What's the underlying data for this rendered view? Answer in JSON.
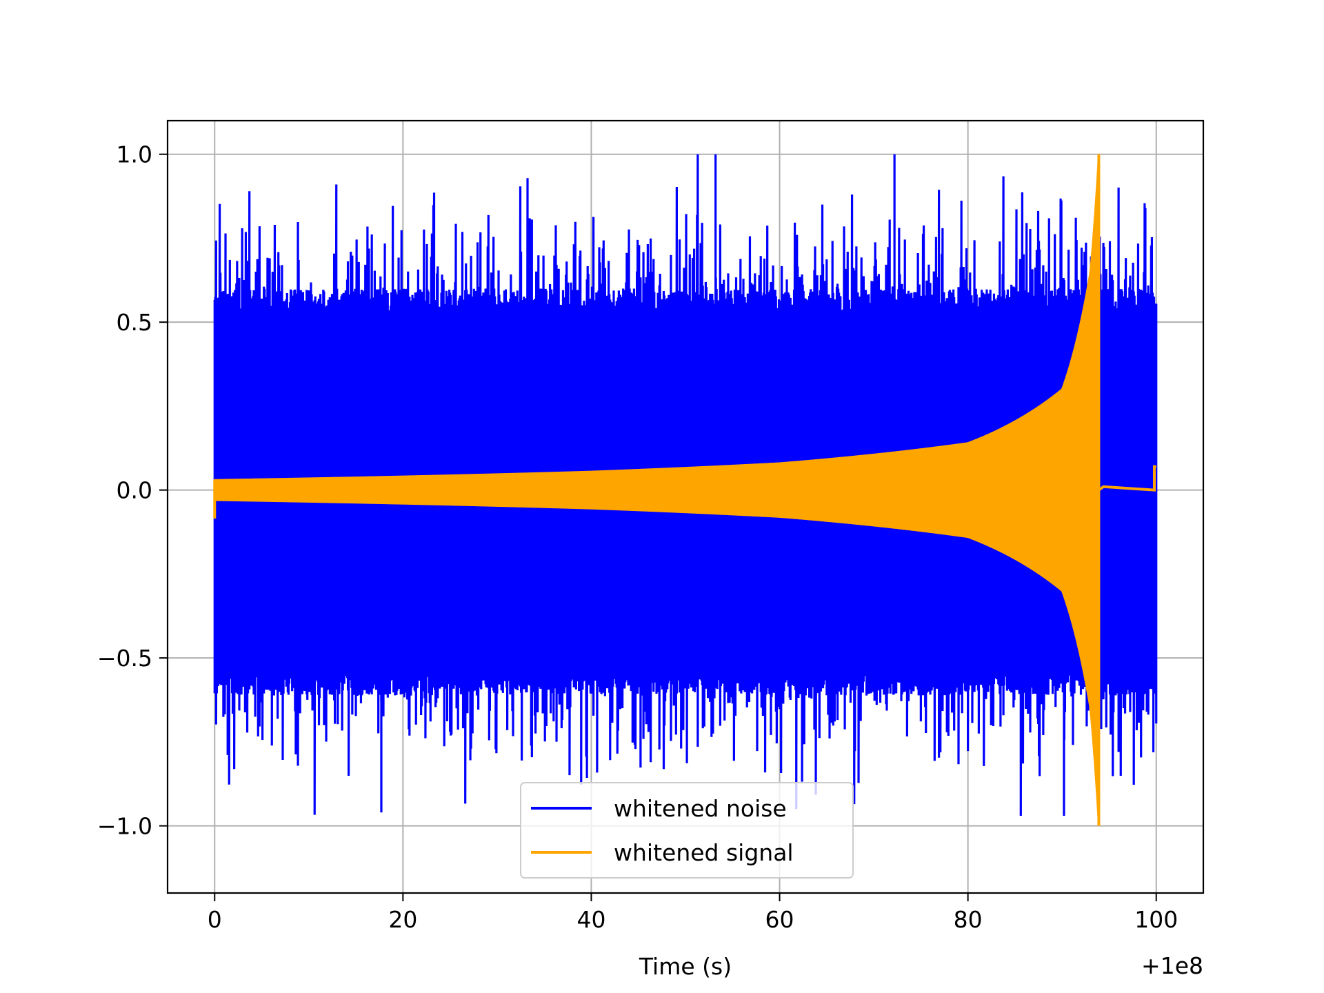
{
  "chart_data": {
    "type": "line",
    "title": "",
    "xlabel": "Time (s)",
    "ylabel": "",
    "x_offset_label": "+1e8",
    "xlim": [
      -5,
      105
    ],
    "ylim": [
      -1.2,
      1.1
    ],
    "xticks": [
      0,
      20,
      40,
      60,
      80,
      100
    ],
    "xtick_labels": [
      "0",
      "20",
      "40",
      "60",
      "80",
      "100"
    ],
    "yticks": [
      -1.0,
      -0.5,
      0.0,
      0.5,
      1.0
    ],
    "ytick_labels": [
      "−1.0",
      "−0.5",
      "0.0",
      "0.5",
      "1.0"
    ],
    "grid": true,
    "legend_position": "bottom-center",
    "series": [
      {
        "name": "whitened noise",
        "color": "#0000ff",
        "x_range": [
          0,
          100
        ],
        "typical_amplitude": 0.6,
        "max": 1.0,
        "min": -0.97,
        "notable_points": [
          {
            "x": 53.2,
            "y": 1.0
          },
          {
            "x": 72.2,
            "y": 1.0
          },
          {
            "x": 17.7,
            "y": -0.96
          },
          {
            "x": 90.2,
            "y": -0.97
          }
        ]
      },
      {
        "name": "whitened signal",
        "color": "#ffa500",
        "x_range": [
          0,
          100
        ],
        "description_points": [
          {
            "x": 0,
            "y": 0.03
          },
          {
            "x": 40,
            "y": 0.055
          },
          {
            "x": 60,
            "y": 0.08
          },
          {
            "x": 80,
            "y": 0.14
          },
          {
            "x": 90,
            "y": 0.3
          },
          {
            "x": 93,
            "y": 0.65
          },
          {
            "x": 93.9,
            "y": 1.0
          }
        ],
        "peak_x": 93.9,
        "max": 1.0,
        "min": -1.0,
        "after_peak_level": 0.0,
        "end_value": 0.07
      }
    ]
  }
}
